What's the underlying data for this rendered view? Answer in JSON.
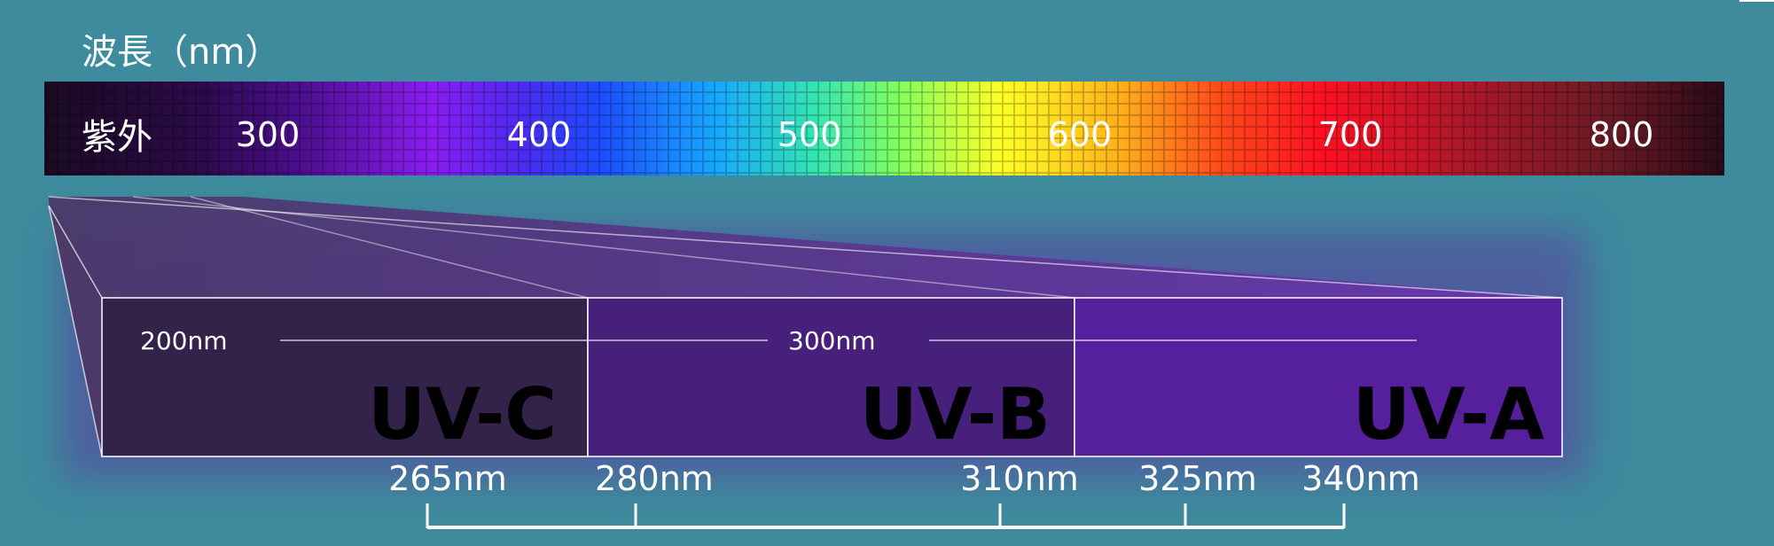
{
  "header": {
    "title": "波長（nm）"
  },
  "spectrum": {
    "ultraviolet_label": "紫外",
    "ticks": [
      {
        "label": "300"
      },
      {
        "label": "400"
      },
      {
        "label": "500"
      },
      {
        "label": "600"
      },
      {
        "label": "700"
      },
      {
        "label": "800"
      }
    ]
  },
  "bands": [
    {
      "label": "UV-C",
      "color": "#33224a"
    },
    {
      "label": "UV-B",
      "color": "#46207a"
    },
    {
      "label": "UV-A",
      "color": "#561f9c"
    }
  ],
  "scale_labels": [
    "200nm",
    "300nm"
  ],
  "ruler": {
    "marks": [
      {
        "label": "265nm",
        "value": 265
      },
      {
        "label": "280nm",
        "value": 280
      },
      {
        "label": "310nm",
        "value": 310
      },
      {
        "label": "325nm",
        "value": 325
      },
      {
        "label": "340nm",
        "value": 340
      }
    ]
  },
  "colors": {
    "background": "#3d8b9c",
    "text": "#ffffff",
    "band_text": "#000000"
  }
}
